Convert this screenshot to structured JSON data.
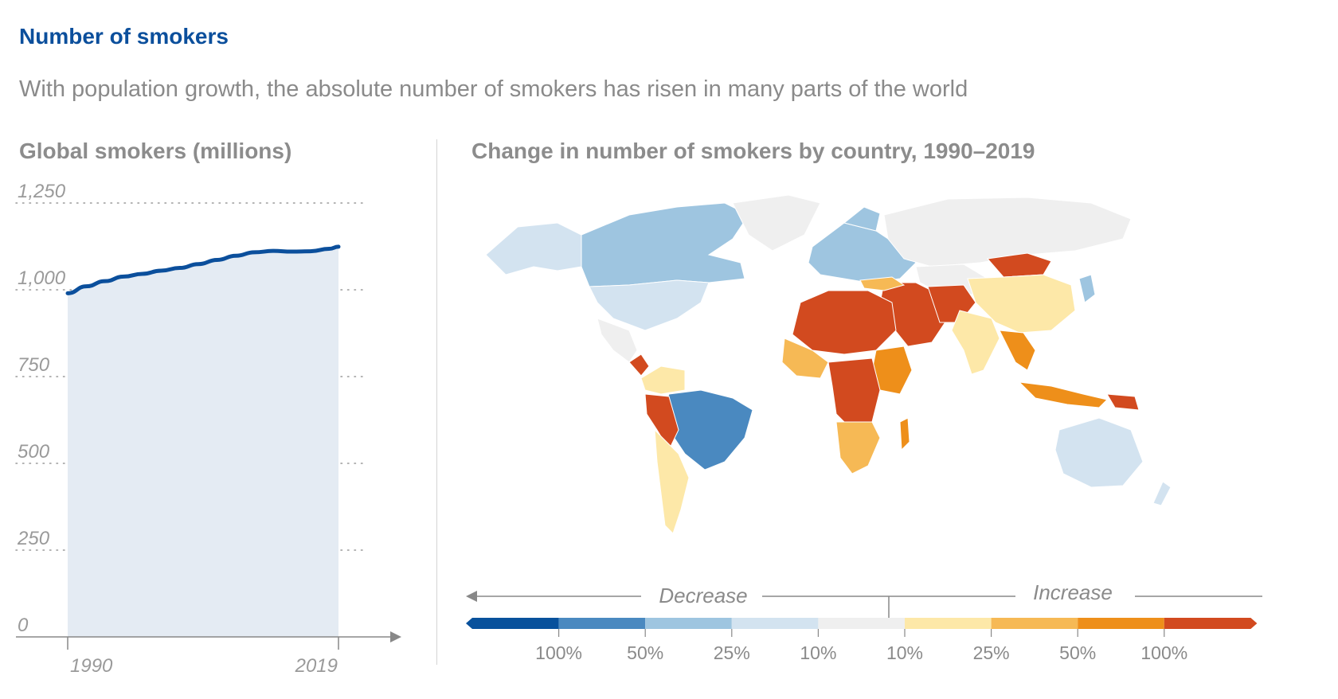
{
  "header": {
    "title": "Number of smokers",
    "subtitle": "With population growth, the absolute number of smokers has risen in many parts of the world"
  },
  "left_panel": {
    "title": "Global smokers (millions)"
  },
  "right_panel": {
    "title": "Change in number of smokers by country, 1990–2019",
    "legend": {
      "decrease_label": "Decrease",
      "increase_label": "Increase",
      "tick_labels": [
        "100%",
        "50%",
        "25%",
        "10%",
        "10%",
        "25%",
        "50%",
        "100%"
      ],
      "colors": [
        "#08519c",
        "#4a89c0",
        "#9ec5e0",
        "#d3e3f0",
        "#efefef",
        "#fde8a8",
        "#f6b955",
        "#ee8f1a",
        "#d24a1f"
      ]
    }
  },
  "chart_data": [
    {
      "type": "area",
      "title": "Global smokers (millions)",
      "x": [
        1990,
        1992,
        1994,
        1996,
        1998,
        2000,
        2002,
        2004,
        2006,
        2008,
        2010,
        2012,
        2014,
        2016,
        2018,
        2019
      ],
      "values": [
        990,
        1010,
        1025,
        1038,
        1046,
        1055,
        1063,
        1074,
        1086,
        1098,
        1108,
        1112,
        1110,
        1111,
        1118,
        1124
      ],
      "x_tick_labels": [
        "1990",
        "2019"
      ],
      "y_ticks": [
        0,
        250,
        500,
        750,
        1000,
        1250
      ],
      "y_tick_labels": [
        "0",
        "250",
        "500",
        "750",
        "1,000",
        "1,250"
      ],
      "ylim": [
        0,
        1250
      ],
      "line_color": "#0b4f9c",
      "fill_color": "#e4ebf3",
      "grid": "dotted horizontal"
    }
  ]
}
